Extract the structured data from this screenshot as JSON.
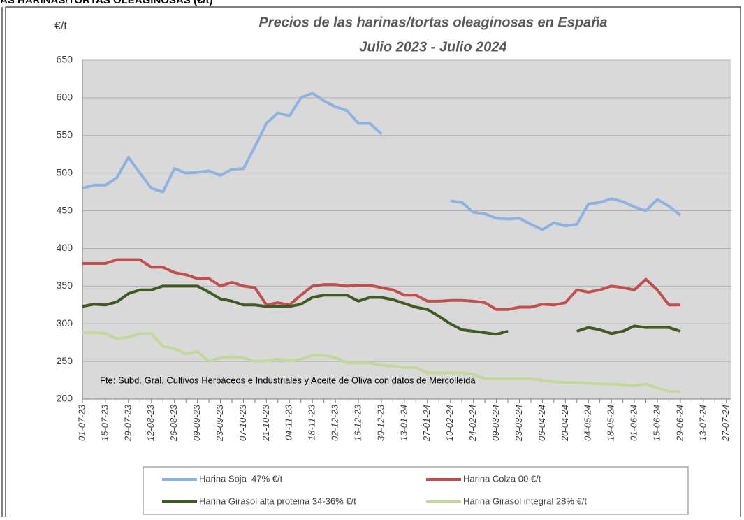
{
  "chart_data": {
    "type": "line",
    "header": "AS HARINAS/TORTAS OLEAGINOSAS (€/t)",
    "title": "Precios de las harinas/tortas oleaginosas en España",
    "subtitle": "Julio 2023 - Julio 2024",
    "y_label": "€/t",
    "annotation": "Fte: Subd. Gral. Cultivos Herbáceos e Industriales y Aceite de Oliva con datos de Mercolleida",
    "categories": [
      "01-07-23",
      null,
      "15-07-23",
      null,
      "29-07-23",
      null,
      "12-08-23",
      null,
      "26-08-23",
      null,
      "09-09-23",
      null,
      "23-09-23",
      null,
      "07-10-23",
      null,
      "21-10-23",
      null,
      "04-11-23",
      null,
      "18-11-23",
      null,
      "02-12-23",
      null,
      "16-12-23",
      null,
      "30-12-23",
      null,
      "13-01-24",
      null,
      "27-01-24",
      null,
      "10-02-24",
      null,
      "24-02-24",
      null,
      "09-03-24",
      null,
      "23-03-24",
      null,
      "06-04-24",
      null,
      "20-04-24",
      null,
      "04-05-24",
      null,
      "18-05-24",
      null,
      "01-06-24",
      null,
      "15-06-24",
      null,
      "29-06-24",
      null,
      "13-07-24",
      null,
      "27-07-24"
    ],
    "series": [
      {
        "name": "Harina Soja  47% €/t",
        "color": "#8db3e2",
        "values": [
          480,
          484,
          484,
          494,
          521,
          500,
          480,
          475,
          506,
          500,
          501,
          503,
          497,
          505,
          506,
          535,
          566,
          580,
          576,
          600,
          606,
          596,
          588,
          583,
          566,
          566,
          552,
          null,
          null,
          null,
          null,
          null,
          463,
          461,
          448,
          446,
          440,
          439,
          440,
          432,
          425,
          434,
          430,
          432,
          459,
          461,
          466,
          462,
          455,
          450,
          465,
          456,
          444,
          null,
          null,
          null,
          null
        ]
      },
      {
        "name": "Harina Colza 00 €/t",
        "color": "#c0504d",
        "values": [
          380,
          380,
          380,
          385,
          385,
          385,
          375,
          375,
          368,
          365,
          360,
          360,
          350,
          355,
          350,
          348,
          325,
          328,
          325,
          338,
          350,
          352,
          352,
          350,
          351,
          351,
          348,
          345,
          338,
          338,
          330,
          330,
          331,
          331,
          330,
          328,
          319,
          319,
          322,
          322,
          326,
          325,
          328,
          345,
          342,
          345,
          350,
          348,
          345,
          359,
          345,
          325,
          325,
          null,
          null,
          null,
          null
        ]
      },
      {
        "name": "Harina Girasol alta proteina 34-36% €/t",
        "color": "#3f5a23",
        "values": [
          323,
          326,
          325,
          329,
          340,
          345,
          345,
          350,
          350,
          350,
          350,
          342,
          333,
          330,
          325,
          325,
          323,
          323,
          323,
          326,
          335,
          338,
          338,
          338,
          330,
          335,
          335,
          332,
          327,
          322,
          319,
          310,
          300,
          292,
          290,
          288,
          286,
          290,
          null,
          null,
          null,
          null,
          null,
          290,
          295,
          292,
          287,
          290,
          297,
          295,
          295,
          295,
          290,
          null,
          null,
          null,
          null
        ]
      },
      {
        "name": "Harina Girasol integral 28% €/t",
        "color": "#c4d79b",
        "values": [
          288,
          288,
          287,
          280,
          282,
          287,
          287,
          270,
          267,
          260,
          263,
          250,
          255,
          256,
          255,
          250,
          251,
          253,
          251,
          253,
          258,
          258,
          255,
          248,
          248,
          248,
          245,
          244,
          242,
          242,
          235,
          235,
          235,
          235,
          233,
          227,
          227,
          227,
          227,
          227,
          225,
          223,
          222,
          222,
          221,
          220,
          220,
          219,
          218,
          220,
          215,
          210,
          210,
          null,
          null,
          null,
          null
        ]
      }
    ],
    "ylim": [
      200,
      650
    ],
    "yticks": [
      200,
      250,
      300,
      350,
      400,
      450,
      500,
      550,
      600,
      650
    ],
    "grid": true
  }
}
